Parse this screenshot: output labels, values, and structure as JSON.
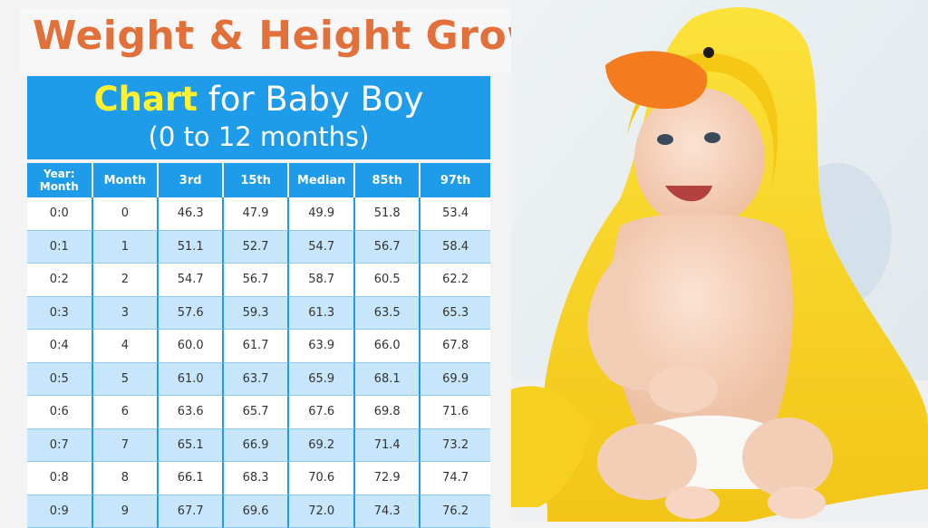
{
  "page": {
    "title": "Weight & Height Growth",
    "chart_heading": {
      "highlight": "Chart",
      "rest": " for Baby Boy",
      "subtitle": "(0 to 12 months)"
    }
  },
  "colors": {
    "title_orange": "#e2703a",
    "header_blue": "#1e9be9",
    "highlight_yellow": "#fff12e",
    "row_light_blue": "#c7e6fb",
    "towel_yellow": "#f7d51e",
    "beak_orange": "#f27c1e"
  },
  "photo": {
    "icon": "baby-in-duck-hood-towel-photo"
  },
  "chart_data": {
    "type": "table",
    "columns": [
      "Year:\nMonth",
      "Month",
      "3rd",
      "15th",
      "Median",
      "85th",
      "97th"
    ],
    "header_lines": [
      [
        "Year:",
        "Month"
      ],
      [
        "Month"
      ],
      [
        "3rd"
      ],
      [
        "15th"
      ],
      [
        "Median"
      ],
      [
        "85th"
      ],
      [
        "97th"
      ]
    ],
    "rows": [
      [
        "0:0",
        "0",
        "46.3",
        "47.9",
        "49.9",
        "51.8",
        "53.4"
      ],
      [
        "0:1",
        "1",
        "51.1",
        "52.7",
        "54.7",
        "56.7",
        "58.4"
      ],
      [
        "0:2",
        "2",
        "54.7",
        "56.7",
        "58.7",
        "60.5",
        "62.2"
      ],
      [
        "0:3",
        "3",
        "57.6",
        "59.3",
        "61.3",
        "63.5",
        "65.3"
      ],
      [
        "0:4",
        "4",
        "60.0",
        "61.7",
        "63.9",
        "66.0",
        "67.8"
      ],
      [
        "0:5",
        "5",
        "61.0",
        "63.7",
        "65.9",
        "68.1",
        "69.9"
      ],
      [
        "0:6",
        "6",
        "63.6",
        "65.7",
        "67.6",
        "69.8",
        "71.6"
      ],
      [
        "0:7",
        "7",
        "65.1",
        "66.9",
        "69.2",
        "71.4",
        "73.2"
      ],
      [
        "0:8",
        "8",
        "66.1",
        "68.3",
        "70.6",
        "72.9",
        "74.7"
      ],
      [
        "0:9",
        "9",
        "67.7",
        "69.6",
        "72.0",
        "74.3",
        "76.2"
      ]
    ]
  }
}
